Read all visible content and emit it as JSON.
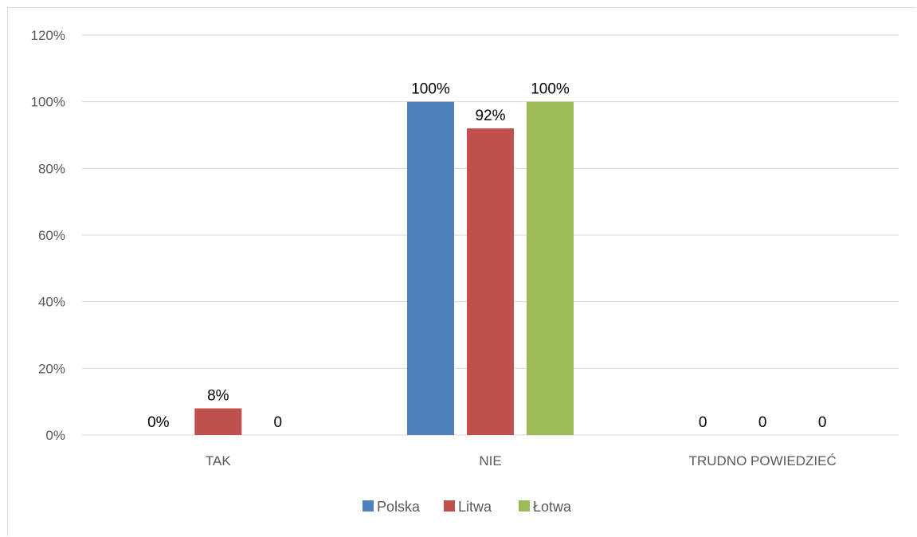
{
  "chart_data": {
    "type": "bar",
    "categories": [
      "TAK",
      "NIE",
      "TRUDNO POWIEDZIEĆ"
    ],
    "series": [
      {
        "name": "Polska",
        "color": "#4f81bd",
        "values": [
          0,
          1.0,
          0
        ],
        "labels": [
          "0%",
          "100%",
          "0"
        ]
      },
      {
        "name": "Litwa",
        "color": "#c0504d",
        "values": [
          0.08,
          0.92,
          0
        ],
        "labels": [
          "8%",
          "92%",
          "0"
        ]
      },
      {
        "name": "Łotwa",
        "color": "#9bbb59",
        "values": [
          0,
          1.0,
          0
        ],
        "labels": [
          "0",
          "100%",
          "0"
        ]
      }
    ],
    "yticks": [
      "0%",
      "20%",
      "40%",
      "60%",
      "80%",
      "100%",
      "120%"
    ],
    "ylim": [
      0,
      1.2
    ],
    "grid": true,
    "legend": "bottom",
    "title": "",
    "xlabel": "",
    "ylabel": ""
  }
}
